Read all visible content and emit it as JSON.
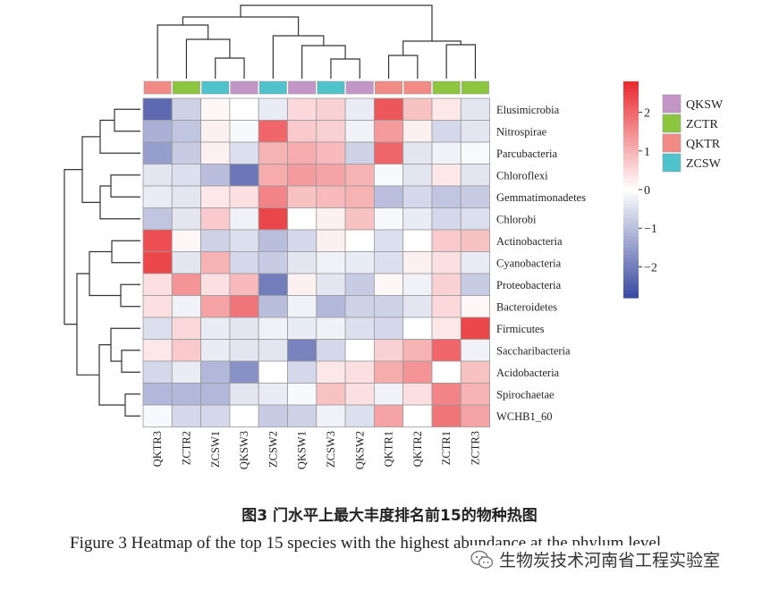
{
  "chart_data": {
    "type": "heatmap",
    "columns": [
      "QKTR3",
      "ZCTR2",
      "ZCSW1",
      "QKSW3",
      "ZCSW2",
      "QKSW1",
      "ZCSW3",
      "QKSW2",
      "QKTR1",
      "QKTR2",
      "ZCTR1",
      "ZCTR3"
    ],
    "column_groups": [
      "QKTR",
      "ZCTR",
      "ZCSW",
      "QKSW",
      "ZCSW",
      "QKSW",
      "ZCSW",
      "QKSW",
      "QKTR",
      "QKTR",
      "ZCTR",
      "ZCTR"
    ],
    "rows": [
      "Elusimicrobia",
      "Nitrospirae",
      "Parcubacteria",
      "Chloroflexi",
      "Gemmatimonadetes",
      "Chlorobi",
      "Actinobacteria",
      "Cyanobacteria",
      "Proteobacteria",
      "Bacteroidetes",
      "Firmicutes",
      "Saccharibacteria",
      "Acidobacteria",
      "Spirochaetae",
      "WCHB1_60"
    ],
    "values": [
      [
        -2.3,
        -0.7,
        0.1,
        0.0,
        -0.3,
        0.5,
        0.6,
        -0.3,
        2.2,
        0.8,
        0.3,
        -0.4
      ],
      [
        -1.2,
        -0.9,
        0.2,
        -0.1,
        2.0,
        0.7,
        0.6,
        -0.2,
        1.3,
        0.2,
        -0.6,
        -0.4
      ],
      [
        -1.5,
        -0.8,
        0.2,
        -0.5,
        1.0,
        1.1,
        0.9,
        -0.7,
        2.0,
        -0.4,
        -0.2,
        -0.1
      ],
      [
        -0.4,
        -0.5,
        -1.0,
        -2.1,
        1.1,
        1.3,
        1.2,
        1.0,
        -0.1,
        -0.4,
        0.3,
        -0.4
      ],
      [
        -0.3,
        -0.4,
        0.3,
        0.4,
        1.6,
        0.8,
        0.9,
        1.0,
        -1.0,
        -0.6,
        -0.9,
        -0.8
      ],
      [
        -0.9,
        -0.4,
        0.7,
        -0.2,
        2.4,
        0.0,
        0.2,
        0.8,
        -0.1,
        -0.3,
        -0.6,
        -0.5
      ],
      [
        2.3,
        0.1,
        -0.7,
        -0.5,
        -1.0,
        -0.6,
        0.2,
        0.0,
        -0.5,
        0.0,
        0.7,
        0.8
      ],
      [
        2.4,
        -0.4,
        1.0,
        -0.6,
        -0.8,
        -0.4,
        -0.2,
        -0.3,
        -0.5,
        0.2,
        0.4,
        -0.3
      ],
      [
        0.4,
        1.4,
        0.4,
        0.9,
        -2.0,
        0.2,
        -0.4,
        -0.8,
        0.1,
        -0.2,
        0.6,
        -0.8
      ],
      [
        0.4,
        -0.2,
        1.2,
        1.8,
        -1.0,
        -0.2,
        -1.1,
        -0.7,
        -0.7,
        -0.4,
        0.5,
        0.1
      ],
      [
        -0.5,
        0.5,
        -0.3,
        -0.4,
        -0.2,
        -0.3,
        -0.2,
        -0.5,
        -0.6,
        0.0,
        0.3,
        2.4
      ],
      [
        0.3,
        0.7,
        -0.3,
        -0.4,
        -0.4,
        -1.9,
        -0.6,
        0.0,
        0.6,
        1.0,
        2.0,
        -0.2
      ],
      [
        -0.6,
        -0.3,
        -1.1,
        -1.7,
        0.0,
        -0.6,
        0.3,
        0.4,
        1.1,
        1.4,
        0.0,
        0.8
      ],
      [
        -1.1,
        -1.1,
        -1.1,
        -0.4,
        -0.3,
        -0.1,
        0.8,
        0.4,
        -0.2,
        0.4,
        1.6,
        1.0
      ],
      [
        -0.1,
        -0.6,
        -0.6,
        0.0,
        -0.8,
        -0.7,
        -0.2,
        -0.5,
        1.2,
        0.0,
        1.8,
        1.2
      ]
    ],
    "color_scale": {
      "min": -2.8,
      "max": 2.8,
      "low": "#3a4aa0",
      "mid": "#ffffff",
      "high": "#e8282d"
    },
    "colorbar_ticks": [
      "2",
      "1",
      "0",
      "−1",
      "−2"
    ],
    "colorbar_tick_values": [
      2,
      1,
      0,
      -1,
      -2
    ],
    "legend_entries": [
      {
        "label": "QKSW",
        "color": "#c496c8"
      },
      {
        "label": "ZCTR",
        "color": "#8cc63f"
      },
      {
        "label": "QKTR",
        "color": "#f28b85"
      },
      {
        "label": "ZCSW",
        "color": "#4fc3cc"
      }
    ]
  },
  "caption_zh": "图3  门水平上最大丰度排名前15的物种热图",
  "caption_en": "Figure 3  Heatmap of the top 15 species with the highest abundance at the phylum level",
  "watermark_text": "生物炭技术河南省工程实验室"
}
